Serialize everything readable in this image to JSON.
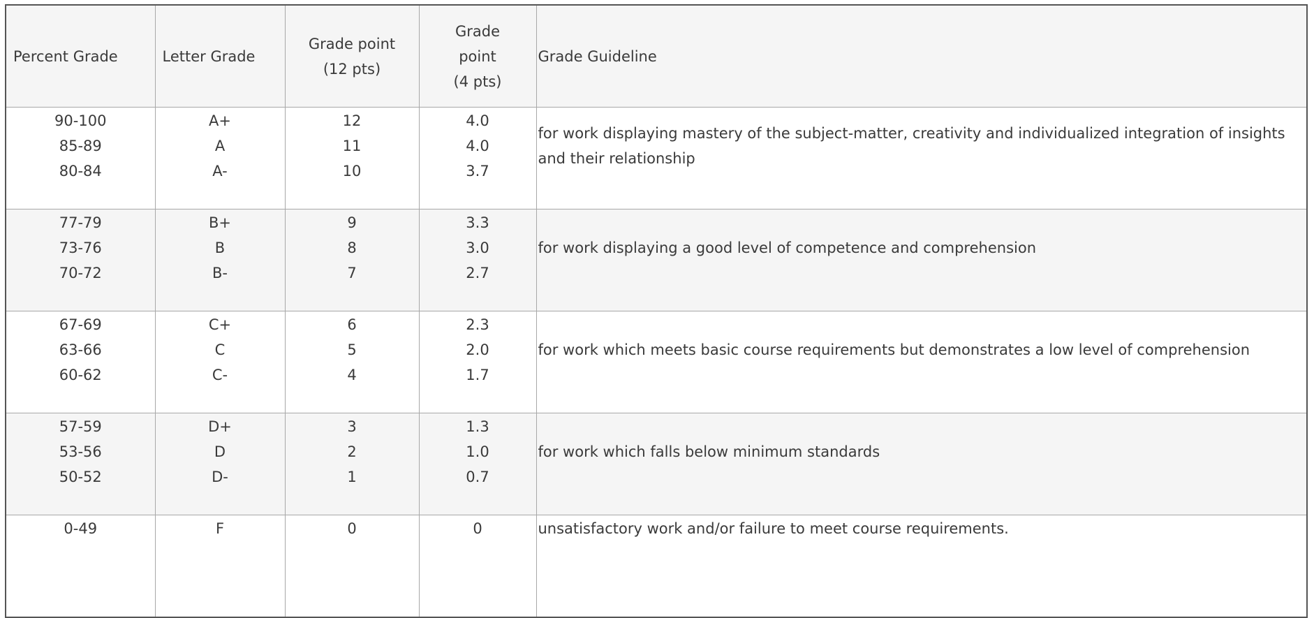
{
  "table": {
    "header": [
      [
        "Percent Grade"
      ],
      [
        "Letter Grade"
      ],
      [
        "Grade point",
        "(12 pts)"
      ],
      [
        "Grade",
        "point",
        "(4 pts)"
      ],
      [
        "Grade Guideline"
      ]
    ],
    "rows": [
      [
        [
          "90-100",
          "85-89",
          "80-84"
        ],
        [
          "A+",
          "A",
          "A-"
        ],
        [
          "12",
          "11",
          "10"
        ],
        [
          "4.0",
          "4.0",
          "3.7"
        ],
        "for work displaying mastery of the subject-matter, creativity and individualized integration of insights and their relationship"
      ],
      [
        [
          "77-79",
          "73-76",
          "70-72"
        ],
        [
          "B+",
          "B",
          "B-"
        ],
        [
          "9",
          "8",
          "7"
        ],
        [
          "3.3",
          "3.0",
          "2.7"
        ],
        "for work displaying a good level of competence and comprehension"
      ],
      [
        [
          "67-69",
          "63-66",
          "60-62"
        ],
        [
          "C+",
          "C",
          "C-"
        ],
        [
          "6",
          "5",
          "4"
        ],
        [
          "2.3",
          "2.0",
          "1.7"
        ],
        "for work which meets basic course requirements but demonstrates a low level of comprehension"
      ],
      [
        [
          "57-59",
          "53-56",
          "50-52"
        ],
        [
          "D+",
          "D",
          "D-"
        ],
        [
          "3",
          "2",
          "1"
        ],
        [
          "1.3",
          "1.0",
          "0.7"
        ],
        "for work which falls below minimum standards"
      ],
      [
        [
          "0-49"
        ],
        [
          "F"
        ],
        [
          "0"
        ],
        [
          "0"
        ],
        "unsatisfactory work and/or failure to meet course requirements."
      ]
    ]
  }
}
